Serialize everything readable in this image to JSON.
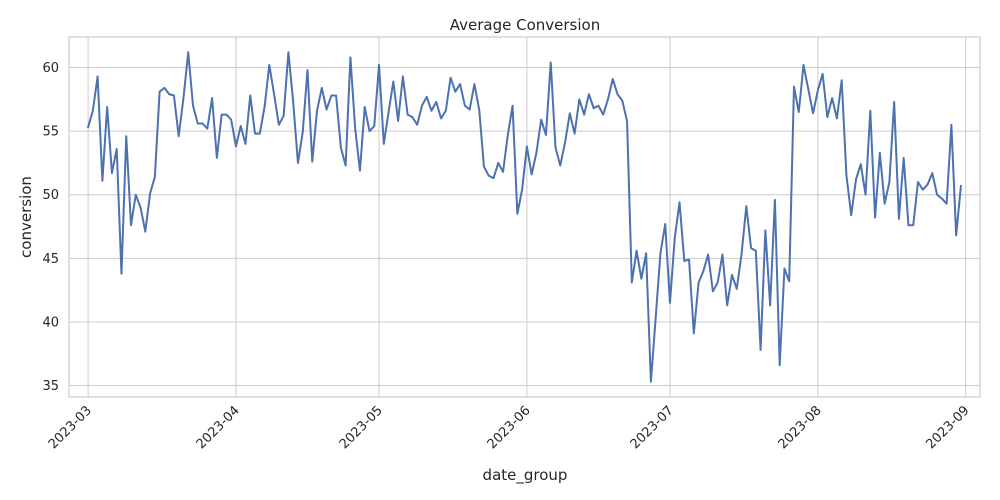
{
  "chart_data": {
    "type": "line",
    "title": "Average Conversion",
    "xlabel": "date_group",
    "ylabel": "conversion",
    "x_ticks": [
      "2023-03",
      "2023-04",
      "2023-05",
      "2023-06",
      "2023-07",
      "2023-08",
      "2023-09"
    ],
    "y_ticks": [
      35,
      40,
      45,
      50,
      55,
      60
    ],
    "xlim": [
      "2023-02-25",
      "2023-09-04"
    ],
    "ylim": [
      34.1,
      62.4
    ],
    "grid": true,
    "line_color": "#4c72b0",
    "series": [
      {
        "x": [
          "2023-03-01",
          "2023-03-02",
          "2023-03-03",
          "2023-03-04",
          "2023-03-05",
          "2023-03-06",
          "2023-03-07",
          "2023-03-08",
          "2023-03-09",
          "2023-03-10",
          "2023-03-11",
          "2023-03-12",
          "2023-03-13",
          "2023-03-14",
          "2023-03-15",
          "2023-03-16",
          "2023-03-17",
          "2023-03-18",
          "2023-03-19",
          "2023-03-20",
          "2023-03-21",
          "2023-03-22",
          "2023-03-23",
          "2023-03-24",
          "2023-03-25",
          "2023-03-26",
          "2023-03-27",
          "2023-03-28",
          "2023-03-29",
          "2023-03-30",
          "2023-03-31",
          "2023-04-01",
          "2023-04-02",
          "2023-04-03",
          "2023-04-04",
          "2023-04-05",
          "2023-04-06",
          "2023-04-07",
          "2023-04-08",
          "2023-04-09",
          "2023-04-10",
          "2023-04-11",
          "2023-04-12",
          "2023-04-13",
          "2023-04-14",
          "2023-04-15",
          "2023-04-16",
          "2023-04-17",
          "2023-04-18",
          "2023-04-19",
          "2023-04-20",
          "2023-04-21",
          "2023-04-22",
          "2023-04-23",
          "2023-04-24",
          "2023-04-25",
          "2023-04-26",
          "2023-04-27",
          "2023-04-28",
          "2023-04-29",
          "2023-04-30",
          "2023-05-01",
          "2023-05-02",
          "2023-05-03",
          "2023-05-04",
          "2023-05-05",
          "2023-05-06",
          "2023-05-07",
          "2023-05-08",
          "2023-05-09",
          "2023-05-10",
          "2023-05-11",
          "2023-05-12",
          "2023-05-13",
          "2023-05-14",
          "2023-05-15",
          "2023-05-16",
          "2023-05-17",
          "2023-05-18",
          "2023-05-19",
          "2023-05-20",
          "2023-05-21",
          "2023-05-22",
          "2023-05-23",
          "2023-05-24",
          "2023-05-25",
          "2023-05-26",
          "2023-05-27",
          "2023-05-28",
          "2023-05-29",
          "2023-05-30",
          "2023-05-31",
          "2023-06-01",
          "2023-06-02",
          "2023-06-03",
          "2023-06-04",
          "2023-06-05",
          "2023-06-06",
          "2023-06-07",
          "2023-06-08",
          "2023-06-09",
          "2023-06-10",
          "2023-06-11",
          "2023-06-12",
          "2023-06-13",
          "2023-06-14",
          "2023-06-15",
          "2023-06-16",
          "2023-06-17",
          "2023-06-18",
          "2023-06-19",
          "2023-06-20",
          "2023-06-21",
          "2023-06-22",
          "2023-06-23",
          "2023-06-24",
          "2023-06-25",
          "2023-06-26",
          "2023-06-27",
          "2023-06-28",
          "2023-06-29",
          "2023-06-30",
          "2023-07-01",
          "2023-07-02",
          "2023-07-03",
          "2023-07-04",
          "2023-07-05",
          "2023-07-06",
          "2023-07-07",
          "2023-07-08",
          "2023-07-09",
          "2023-07-10",
          "2023-07-11",
          "2023-07-12",
          "2023-07-13",
          "2023-07-14",
          "2023-07-15",
          "2023-07-16",
          "2023-07-17",
          "2023-07-18",
          "2023-07-19",
          "2023-07-20",
          "2023-07-21",
          "2023-07-22",
          "2023-07-23",
          "2023-07-24",
          "2023-07-25",
          "2023-07-26",
          "2023-07-27",
          "2023-07-28",
          "2023-07-29",
          "2023-07-30",
          "2023-07-31",
          "2023-08-01",
          "2023-08-02",
          "2023-08-03",
          "2023-08-04",
          "2023-08-05",
          "2023-08-06",
          "2023-08-07",
          "2023-08-08",
          "2023-08-09",
          "2023-08-10",
          "2023-08-11",
          "2023-08-12",
          "2023-08-13",
          "2023-08-14",
          "2023-08-15",
          "2023-08-16",
          "2023-08-17",
          "2023-08-18",
          "2023-08-19",
          "2023-08-20",
          "2023-08-21",
          "2023-08-22",
          "2023-08-23",
          "2023-08-24",
          "2023-08-25",
          "2023-08-26",
          "2023-08-27",
          "2023-08-28",
          "2023-08-29",
          "2023-08-30",
          "2023-08-31"
        ],
        "y": [
          55.3,
          56.6,
          59.3,
          51.1,
          56.9,
          51.7,
          53.6,
          43.8,
          54.6,
          47.6,
          50.0,
          49.0,
          47.1,
          50.1,
          51.4,
          58.1,
          58.4,
          57.9,
          57.8,
          54.6,
          57.6,
          61.2,
          57.0,
          55.6,
          55.6,
          55.2,
          57.6,
          52.9,
          56.3,
          56.3,
          55.9,
          53.8,
          55.4,
          54.0,
          57.8,
          54.8,
          54.8,
          56.9,
          60.2,
          57.9,
          55.5,
          56.2,
          61.2,
          57.3,
          52.5,
          54.9,
          59.8,
          52.6,
          56.6,
          58.4,
          56.7,
          57.8,
          57.8,
          53.7,
          52.3,
          60.8,
          55.2,
          51.9,
          56.9,
          55.0,
          55.4,
          60.2,
          54.0,
          56.5,
          58.9,
          55.8,
          59.3,
          56.3,
          56.1,
          55.5,
          57.0,
          57.7,
          56.6,
          57.3,
          56.0,
          56.6,
          59.2,
          58.1,
          58.7,
          57.0,
          56.7,
          58.7,
          56.7,
          52.2,
          51.5,
          51.3,
          52.5,
          51.8,
          54.7,
          57.0,
          48.5,
          50.4,
          53.8,
          51.6,
          53.3,
          55.9,
          54.7,
          60.4,
          53.7,
          52.3,
          54.1,
          56.4,
          54.8,
          57.5,
          56.3,
          57.9,
          56.8,
          57.0,
          56.3,
          57.5,
          59.1,
          57.9,
          57.4,
          55.8,
          43.1,
          45.6,
          43.4,
          45.4,
          35.3,
          40.3,
          45.4,
          47.7,
          41.5,
          46.6,
          49.4,
          44.8,
          44.9,
          39.1,
          43.1,
          44.0,
          45.3,
          42.4,
          43.1,
          45.3,
          41.3,
          43.7,
          42.6,
          45.3,
          49.1,
          45.8,
          45.6,
          37.8,
          47.2,
          41.3,
          49.6,
          36.6,
          44.2,
          43.2,
          58.5,
          56.5,
          60.2,
          58.3,
          56.4,
          58.2,
          59.5,
          56.1,
          57.6,
          56.0,
          59.0,
          51.5,
          48.4,
          51.2,
          52.4,
          50.0,
          56.6,
          48.2,
          53.3,
          49.3,
          51.0,
          57.3,
          48.1,
          52.9,
          47.6,
          47.6,
          51.0,
          50.4,
          50.8,
          51.7,
          50.0,
          49.7,
          49.3,
          55.5,
          46.8,
          50.7
        ]
      }
    ]
  }
}
